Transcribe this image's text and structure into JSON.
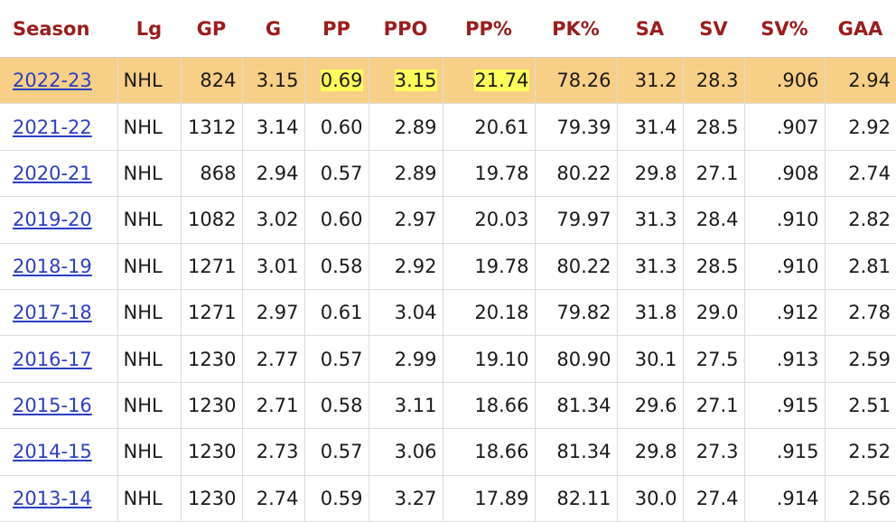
{
  "table": {
    "header": [
      "Season",
      "Lg",
      "GP",
      "G",
      "PP",
      "PPO",
      "PP%",
      "PK%",
      "SA",
      "SV",
      "SV%",
      "GAA"
    ],
    "rows": [
      [
        "2022-23",
        "NHL",
        "824",
        "3.15",
        "0.69",
        "3.15",
        "21.74",
        "78.26",
        "31.2",
        "28.3",
        ".906",
        "2.94"
      ],
      [
        "2021-22",
        "NHL",
        "1312",
        "3.14",
        "0.60",
        "2.89",
        "20.61",
        "79.39",
        "31.4",
        "28.5",
        ".907",
        "2.92"
      ],
      [
        "2020-21",
        "NHL",
        "868",
        "2.94",
        "0.57",
        "2.89",
        "19.78",
        "80.22",
        "29.8",
        "27.1",
        ".908",
        "2.74"
      ],
      [
        "2019-20",
        "NHL",
        "1082",
        "3.02",
        "0.60",
        "2.97",
        "20.03",
        "79.97",
        "31.3",
        "28.4",
        ".910",
        "2.82"
      ],
      [
        "2018-19",
        "NHL",
        "1271",
        "3.01",
        "0.58",
        "2.92",
        "19.78",
        "80.22",
        "31.3",
        "28.5",
        ".910",
        "2.81"
      ],
      [
        "2017-18",
        "NHL",
        "1271",
        "2.97",
        "0.61",
        "3.04",
        "20.18",
        "79.82",
        "31.8",
        "29.0",
        ".912",
        "2.78"
      ],
      [
        "2016-17",
        "NHL",
        "1230",
        "2.77",
        "0.57",
        "2.99",
        "19.10",
        "80.90",
        "30.1",
        "27.5",
        ".913",
        "2.59"
      ],
      [
        "2015-16",
        "NHL",
        "1230",
        "2.71",
        "0.58",
        "3.11",
        "18.66",
        "81.34",
        "29.6",
        "27.1",
        ".915",
        "2.51"
      ],
      [
        "2014-15",
        "NHL",
        "1230",
        "2.73",
        "0.57",
        "3.06",
        "18.66",
        "81.34",
        "29.8",
        "27.3",
        ".915",
        "2.52"
      ],
      [
        "2013-14",
        "NHL",
        "1230",
        "2.74",
        "0.59",
        "3.27",
        "17.89",
        "82.11",
        "30.0",
        "27.4",
        ".914",
        "2.56"
      ]
    ]
  }
}
